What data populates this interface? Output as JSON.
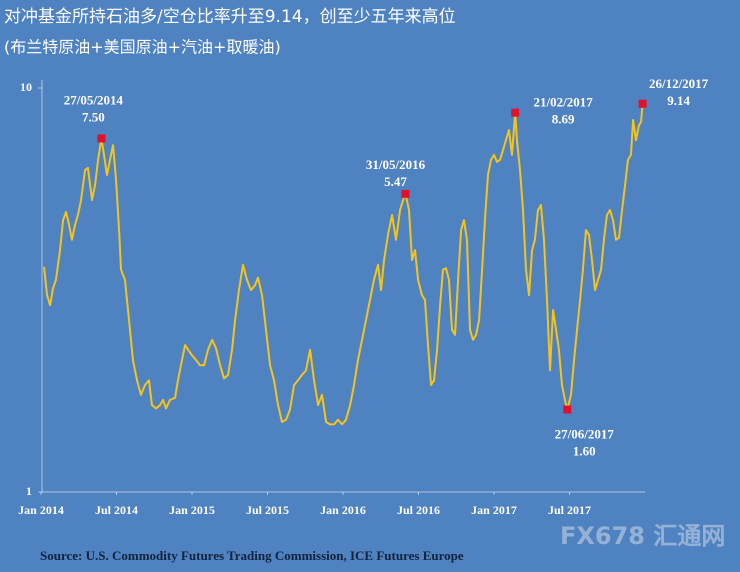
{
  "chart_data": {
    "type": "line",
    "title": "对冲基金所持石油多/空仓比率升至9.14，创至少五年来高位",
    "subtitle": "(布兰特原油+美国原油+汽油+取暖油)",
    "source": "Source: U.S. Commodity Futures Trading Commission, ICE Futures Europe",
    "watermark": "FX678 汇通网",
    "x": [
      2014.02,
      2014.04,
      2014.06,
      2014.08,
      2014.099,
      2014.126,
      2014.146,
      2014.166,
      2014.186,
      2014.205,
      2014.225,
      2014.245,
      2014.265,
      2014.292,
      2014.311,
      2014.338,
      2014.358,
      2014.378,
      2014.4,
      2014.417,
      2014.437,
      2014.457,
      2014.477,
      2014.497,
      2014.517,
      2014.53,
      2014.556,
      2014.583,
      2014.609,
      2014.636,
      2014.662,
      2014.689,
      2014.715,
      2014.735,
      2014.762,
      2014.788,
      2014.808,
      2014.828,
      2014.854,
      2014.888,
      2014.907,
      2014.927,
      2014.954,
      2014.974,
      2015.0,
      2015.027,
      2015.053,
      2015.08,
      2015.106,
      2015.133,
      2015.159,
      2015.186,
      2015.212,
      2015.239,
      2015.265,
      2015.285,
      2015.311,
      2015.338,
      2015.364,
      2015.391,
      2015.417,
      2015.437,
      2015.464,
      2015.49,
      2015.517,
      2015.543,
      2015.57,
      2015.596,
      2015.623,
      2015.649,
      2015.676,
      2015.702,
      2015.729,
      2015.755,
      2015.782,
      2015.808,
      2015.835,
      2015.861,
      2015.888,
      2015.914,
      2015.941,
      2015.967,
      2015.994,
      2016.02,
      2016.047,
      2016.073,
      2016.099,
      2016.126,
      2016.152,
      2016.179,
      2016.205,
      2016.232,
      2016.252,
      2016.272,
      2016.298,
      2016.325,
      2016.351,
      2016.378,
      2016.398,
      2016.414,
      2016.437,
      2016.457,
      2016.477,
      2016.497,
      2016.523,
      2016.543,
      2016.563,
      2016.583,
      2016.603,
      2016.623,
      2016.643,
      2016.662,
      2016.682,
      2016.702,
      2016.722,
      2016.742,
      2016.762,
      2016.782,
      2016.801,
      2016.821,
      2016.841,
      2016.861,
      2016.881,
      2016.901,
      2016.921,
      2016.94,
      2016.96,
      2016.98,
      2017.0,
      2017.02,
      2017.04,
      2017.06,
      2017.079,
      2017.099,
      2017.119,
      2017.14,
      2017.152,
      2017.172,
      2017.192,
      2017.212,
      2017.232,
      2017.252,
      2017.271,
      2017.291,
      2017.311,
      2017.331,
      2017.351,
      2017.371,
      2017.391,
      2017.411,
      2017.43,
      2017.45,
      2017.47,
      2017.485,
      2017.51,
      2017.53,
      2017.55,
      2017.57,
      2017.589,
      2017.609,
      2017.629,
      2017.649,
      2017.669,
      2017.689,
      2017.709,
      2017.728,
      2017.748,
      2017.768,
      2017.788,
      2017.808,
      2017.828,
      2017.848,
      2017.868,
      2017.887,
      2017.907,
      2017.921,
      2017.94,
      2017.96,
      2017.974,
      2017.984
    ],
    "series": [
      {
        "color": "#f5c41c",
        "values": [
          3.61,
          3.07,
          2.9,
          3.2,
          3.35,
          3.97,
          4.71,
          4.93,
          4.58,
          4.21,
          4.58,
          4.85,
          5.28,
          6.27,
          6.34,
          5.28,
          5.75,
          6.64,
          7.5,
          6.83,
          6.09,
          6.64,
          7.22,
          5.92,
          4.45,
          3.55,
          3.35,
          2.66,
          2.12,
          1.89,
          1.74,
          1.84,
          1.89,
          1.64,
          1.61,
          1.64,
          1.69,
          1.61,
          1.69,
          1.71,
          1.89,
          2.06,
          2.31,
          2.25,
          2.18,
          2.12,
          2.06,
          2.06,
          2.25,
          2.38,
          2.27,
          2.06,
          1.91,
          1.95,
          2.25,
          2.66,
          3.16,
          3.65,
          3.35,
          3.16,
          3.25,
          3.39,
          3.07,
          2.52,
          2.06,
          1.89,
          1.64,
          1.49,
          1.51,
          1.6,
          1.84,
          1.89,
          1.95,
          2.0,
          2.25,
          1.89,
          1.64,
          1.74,
          1.49,
          1.47,
          1.47,
          1.51,
          1.47,
          1.51,
          1.64,
          1.84,
          2.12,
          2.38,
          2.66,
          2.99,
          3.35,
          3.65,
          3.16,
          3.75,
          4.33,
          4.85,
          4.21,
          4.99,
          5.28,
          5.47,
          4.99,
          3.75,
          3.97,
          3.35,
          3.07,
          2.99,
          2.31,
          1.84,
          1.89,
          2.25,
          2.9,
          3.55,
          3.58,
          3.35,
          2.52,
          2.45,
          3.35,
          4.45,
          4.71,
          4.21,
          2.52,
          2.38,
          2.45,
          2.66,
          3.55,
          4.71,
          6.09,
          6.64,
          6.83,
          6.56,
          6.64,
          7.03,
          7.43,
          7.87,
          6.83,
          8.69,
          7.43,
          6.27,
          4.99,
          3.55,
          3.07,
          3.97,
          4.21,
          4.99,
          5.13,
          4.21,
          2.99,
          2.0,
          2.82,
          2.52,
          2.25,
          1.84,
          1.69,
          1.6,
          1.74,
          2.12,
          2.52,
          2.99,
          3.55,
          4.45,
          4.33,
          3.75,
          3.16,
          3.35,
          3.55,
          4.21,
          4.85,
          4.99,
          4.71,
          4.21,
          4.26,
          4.99,
          5.75,
          6.64,
          6.83,
          8.33,
          7.43,
          8.09,
          8.24,
          9.14
        ]
      }
    ],
    "annotations": [
      {
        "date": "27/05/2014",
        "x": 2014.4,
        "value": 7.5,
        "value_label": "7.50"
      },
      {
        "date": "31/05/2016",
        "x": 2016.414,
        "value": 5.47,
        "value_label": "5.47"
      },
      {
        "date": "21/02/2017",
        "x": 2017.14,
        "value": 8.69,
        "value_label": "8.69"
      },
      {
        "date": "27/06/2017",
        "x": 2017.485,
        "value": 1.6,
        "value_label": "1.60"
      },
      {
        "date": "26/12/2017",
        "x": 2017.984,
        "value": 9.14,
        "value_label": "9.14"
      }
    ],
    "marker_color": "#e3102b",
    "xlim": [
      2014,
      2018
    ],
    "xticks": [
      {
        "value": 2014,
        "label": "Jan 2014"
      },
      {
        "value": 2014.5,
        "label": "Jul 2014"
      },
      {
        "value": 2015,
        "label": "Jan 2015"
      },
      {
        "value": 2015.5,
        "label": "Jul 2015"
      },
      {
        "value": 2016,
        "label": "Jan 2016"
      },
      {
        "value": 2016.5,
        "label": "Jul 2016"
      },
      {
        "value": 2017,
        "label": "Jan 2017"
      },
      {
        "value": 2017.5,
        "label": "Jul 2017"
      }
    ],
    "ylim": [
      1,
      10
    ],
    "yticks": [
      1,
      10
    ],
    "log_scale": true
  }
}
